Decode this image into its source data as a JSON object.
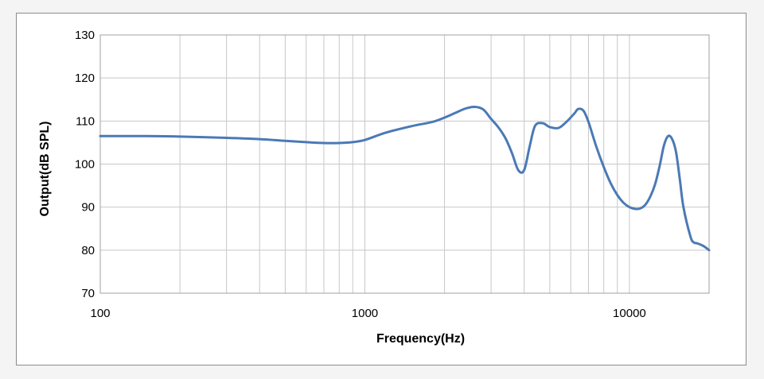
{
  "chart_data": {
    "type": "line",
    "title": "",
    "xlabel": "Frequency(Hz)",
    "ylabel": "Output(dB SPL)",
    "x_scale": "log",
    "xlim": [
      100,
      20000
    ],
    "ylim": [
      70,
      130
    ],
    "x_ticks": [
      100,
      1000,
      10000
    ],
    "x_tick_labels": [
      "100",
      "1000",
      "10000"
    ],
    "y_ticks": [
      70,
      80,
      90,
      100,
      110,
      120,
      130
    ],
    "y_tick_labels": [
      "70",
      "80",
      "90",
      "100",
      "110",
      "120",
      "130"
    ],
    "grid": true,
    "legend": "none",
    "colors": {
      "line": "#4a7ab5",
      "grid": "#c8c8c8",
      "plot_border": "#a0a0a0"
    },
    "series": [
      {
        "x": [
          100,
          150,
          200,
          300,
          400,
          500,
          600,
          700,
          800,
          900,
          1000,
          1200,
          1500,
          1800,
          2000,
          2200,
          2400,
          2600,
          2800,
          3000,
          3200,
          3400,
          3600,
          3800,
          4000,
          4200,
          4400,
          4700,
          5000,
          5400,
          5800,
          6200,
          6400,
          6700,
          7000,
          7500,
          8000,
          8500,
          9000,
          9500,
          10000,
          10500,
          11000,
          11500,
          12000,
          12500,
          13000,
          13500,
          14000,
          14500,
          15000,
          15500,
          16000,
          17000,
          17500,
          18000,
          19000,
          20000
        ],
        "values": [
          106.5,
          106.5,
          106.4,
          106.1,
          105.8,
          105.4,
          105.1,
          104.9,
          104.9,
          105.1,
          105.6,
          107.3,
          108.8,
          109.8,
          110.8,
          111.9,
          112.9,
          113.3,
          112.7,
          110.5,
          108.5,
          106.0,
          102.5,
          98.6,
          98.6,
          104.2,
          108.9,
          109.5,
          108.6,
          108.4,
          109.9,
          111.8,
          112.8,
          112.4,
          109.8,
          104.0,
          99.3,
          95.5,
          92.8,
          91.0,
          90.0,
          89.6,
          89.7,
          90.6,
          92.5,
          95.3,
          99.5,
          104.3,
          106.5,
          105.8,
          102.8,
          96.5,
          90.0,
          83.2,
          81.8,
          81.6,
          81.0,
          80.0
        ]
      }
    ]
  }
}
